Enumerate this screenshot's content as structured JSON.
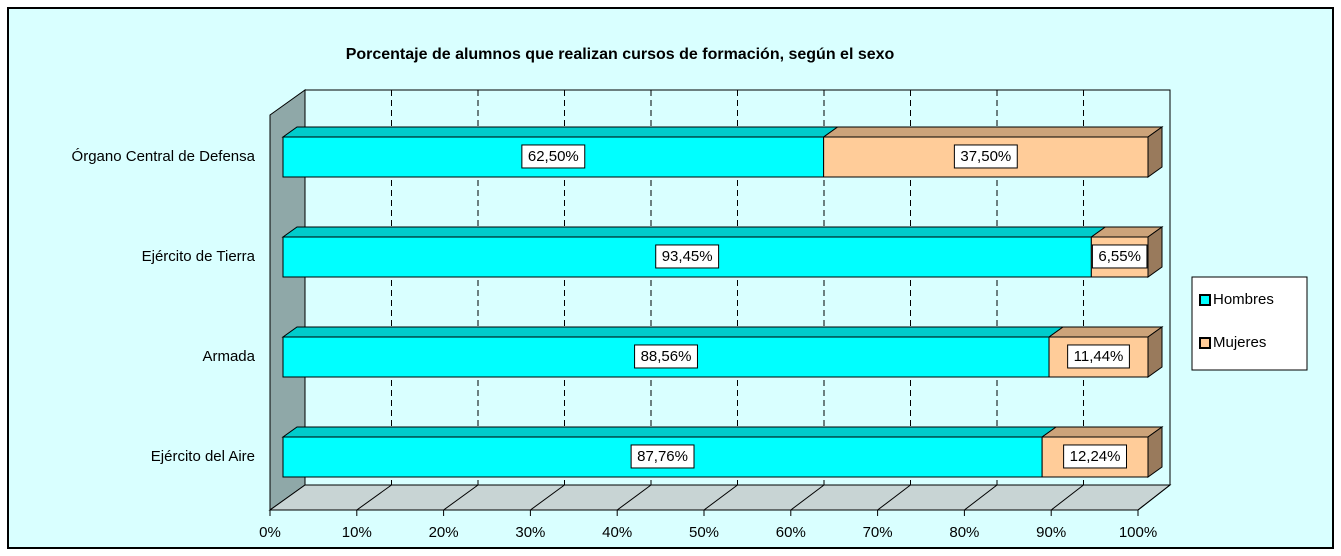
{
  "chart_data": {
    "type": "bar",
    "orientation": "horizontal",
    "stacked": true,
    "title": "Porcentaje de alumnos que realizan cursos de formación, según el  sexo",
    "categories": [
      "Órgano Central de Defensa",
      "Ejército de Tierra",
      "Armada",
      "Ejército del Aire"
    ],
    "series": [
      {
        "name": "Hombres",
        "color": "#00ffff",
        "values": [
          62.5,
          93.45,
          88.56,
          87.76
        ],
        "value_labels": [
          "62,50%",
          "93,45%",
          "88,56%",
          "87,76%"
        ]
      },
      {
        "name": "Mujeres",
        "color": "#ffcc99",
        "values": [
          37.5,
          6.55,
          11.44,
          12.24
        ],
        "value_labels": [
          "37,50%",
          "6,55%",
          "11,44%",
          "12,24%"
        ]
      }
    ],
    "xlim": [
      0,
      100
    ],
    "xticks": [
      {
        "value": 0,
        "label": "0%"
      },
      {
        "value": 10,
        "label": "10%"
      },
      {
        "value": 20,
        "label": "20%"
      },
      {
        "value": 30,
        "label": "30%"
      },
      {
        "value": 40,
        "label": "40%"
      },
      {
        "value": 50,
        "label": "50%"
      },
      {
        "value": 60,
        "label": "60%"
      },
      {
        "value": 70,
        "label": "70%"
      },
      {
        "value": 80,
        "label": "80%"
      },
      {
        "value": 90,
        "label": "90%"
      },
      {
        "value": 100,
        "label": "100%"
      }
    ],
    "grid": true,
    "legend": "right"
  }
}
